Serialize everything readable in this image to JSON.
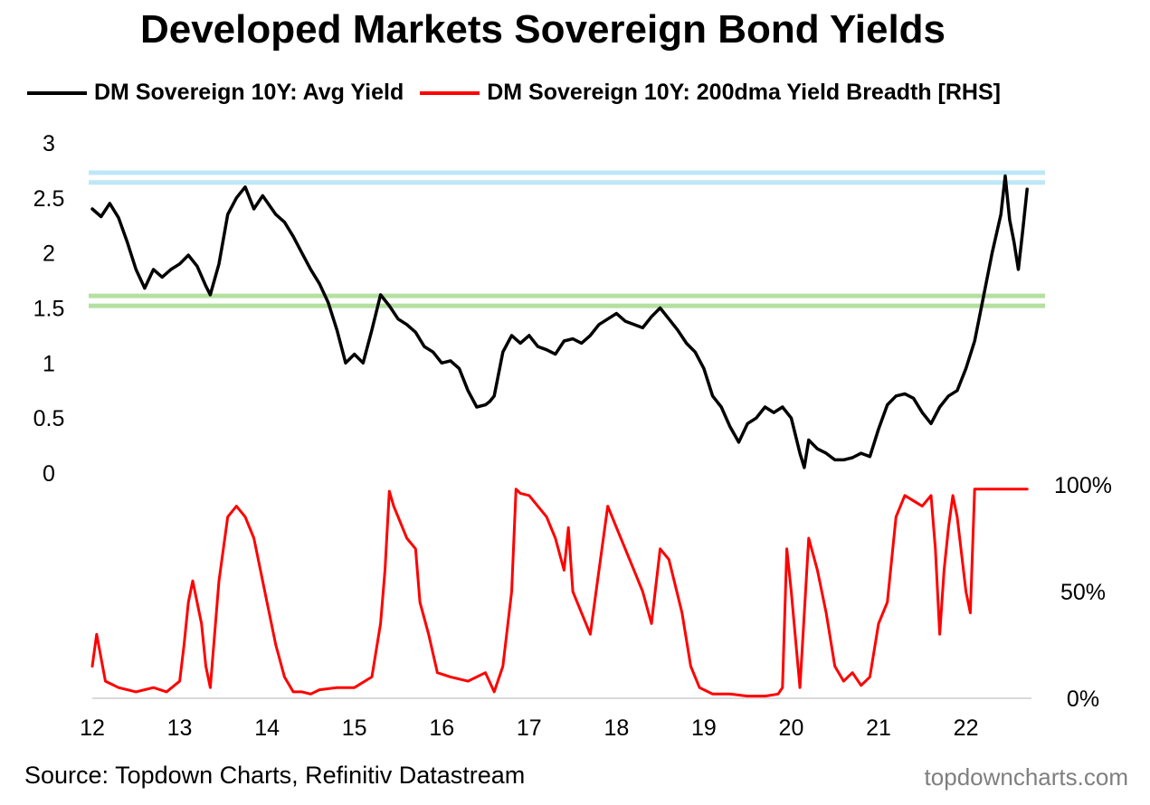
{
  "chart_data": {
    "title": "Developed Markets Sovereign Bond Yields",
    "type": "line",
    "legend_position": "top",
    "grid": false,
    "source": "Source: Topdown Charts, Refinitiv Datastream",
    "watermark": "topdowncharts.com",
    "x_ticks": [
      "12",
      "13",
      "14",
      "15",
      "16",
      "17",
      "18",
      "19",
      "20",
      "21",
      "22"
    ],
    "x_range": [
      2012.0,
      2022.75
    ],
    "left_axis": {
      "ticks": [
        "0",
        "0.5",
        "1",
        "1.5",
        "2",
        "2.5",
        "3"
      ],
      "range": [
        0,
        3
      ]
    },
    "right_axis": {
      "ticks": [
        "0%",
        "50%",
        "100%"
      ],
      "range": [
        0,
        100
      ]
    },
    "reference_bands": [
      {
        "color": "#bde7f7",
        "y": [
          2.64,
          2.73
        ]
      },
      {
        "color": "#b4e0a0",
        "y": [
          1.52,
          1.61
        ]
      }
    ],
    "series": [
      {
        "name": "DM Sovereign 10Y: Avg Yield",
        "color": "#000000",
        "axis": "left",
        "x": [
          2012.0,
          2012.1,
          2012.2,
          2012.3,
          2012.4,
          2012.5,
          2012.6,
          2012.7,
          2012.8,
          2012.9,
          2013.0,
          2013.1,
          2013.2,
          2013.3,
          2013.35,
          2013.45,
          2013.55,
          2013.65,
          2013.75,
          2013.85,
          2013.95,
          2014.1,
          2014.2,
          2014.3,
          2014.4,
          2014.5,
          2014.6,
          2014.7,
          2014.8,
          2014.9,
          2015.0,
          2015.1,
          2015.2,
          2015.3,
          2015.4,
          2015.5,
          2015.6,
          2015.7,
          2015.8,
          2015.9,
          2016.0,
          2016.1,
          2016.2,
          2016.3,
          2016.4,
          2016.5,
          2016.55,
          2016.6,
          2016.7,
          2016.8,
          2016.9,
          2017.0,
          2017.1,
          2017.2,
          2017.3,
          2017.4,
          2017.5,
          2017.6,
          2017.7,
          2017.8,
          2017.9,
          2018.0,
          2018.1,
          2018.2,
          2018.3,
          2018.4,
          2018.5,
          2018.6,
          2018.7,
          2018.8,
          2018.9,
          2019.0,
          2019.1,
          2019.2,
          2019.3,
          2019.4,
          2019.5,
          2019.6,
          2019.7,
          2019.8,
          2019.9,
          2020.0,
          2020.1,
          2020.15,
          2020.2,
          2020.3,
          2020.4,
          2020.5,
          2020.6,
          2020.7,
          2020.8,
          2020.9,
          2021.0,
          2021.1,
          2021.2,
          2021.3,
          2021.4,
          2021.5,
          2021.6,
          2021.7,
          2021.8,
          2021.9,
          2022.0,
          2022.1,
          2022.2,
          2022.3,
          2022.4,
          2022.45,
          2022.5,
          2022.55,
          2022.6,
          2022.65,
          2022.7
        ],
        "values": [
          2.4,
          2.33,
          2.45,
          2.32,
          2.1,
          1.85,
          1.68,
          1.85,
          1.78,
          1.85,
          1.9,
          1.98,
          1.88,
          1.7,
          1.62,
          1.9,
          2.35,
          2.5,
          2.6,
          2.4,
          2.52,
          2.35,
          2.28,
          2.15,
          2.0,
          1.85,
          1.72,
          1.55,
          1.3,
          1.0,
          1.08,
          1.0,
          1.3,
          1.62,
          1.52,
          1.4,
          1.35,
          1.28,
          1.15,
          1.1,
          1.0,
          1.02,
          0.95,
          0.75,
          0.6,
          0.62,
          0.65,
          0.7,
          1.1,
          1.25,
          1.18,
          1.25,
          1.15,
          1.12,
          1.08,
          1.2,
          1.22,
          1.18,
          1.25,
          1.35,
          1.4,
          1.45,
          1.38,
          1.35,
          1.32,
          1.42,
          1.5,
          1.4,
          1.3,
          1.18,
          1.1,
          0.95,
          0.7,
          0.6,
          0.42,
          0.28,
          0.45,
          0.5,
          0.6,
          0.55,
          0.6,
          0.5,
          0.18,
          0.05,
          0.3,
          0.22,
          0.18,
          0.12,
          0.12,
          0.14,
          0.18,
          0.15,
          0.4,
          0.62,
          0.7,
          0.72,
          0.68,
          0.55,
          0.45,
          0.6,
          0.7,
          0.75,
          0.95,
          1.2,
          1.6,
          2.0,
          2.35,
          2.7,
          2.3,
          2.1,
          1.85,
          2.2,
          2.58
        ]
      },
      {
        "name": "DM Sovereign 10Y: 200dma Yield Breadth [RHS]",
        "color": "#ff0000",
        "axis": "right",
        "x": [
          2012.0,
          2012.05,
          2012.15,
          2012.3,
          2012.5,
          2012.7,
          2012.85,
          2013.0,
          2013.05,
          2013.1,
          2013.15,
          2013.25,
          2013.3,
          2013.35,
          2013.45,
          2013.55,
          2013.65,
          2013.75,
          2013.85,
          2014.0,
          2014.1,
          2014.2,
          2014.3,
          2014.4,
          2014.5,
          2014.6,
          2014.8,
          2015.0,
          2015.2,
          2015.3,
          2015.35,
          2015.4,
          2015.45,
          2015.5,
          2015.6,
          2015.7,
          2015.75,
          2015.85,
          2015.95,
          2016.1,
          2016.3,
          2016.5,
          2016.6,
          2016.7,
          2016.8,
          2016.85,
          2016.9,
          2017.0,
          2017.1,
          2017.2,
          2017.3,
          2017.4,
          2017.45,
          2017.5,
          2017.6,
          2017.7,
          2017.8,
          2017.9,
          2018.0,
          2018.1,
          2018.2,
          2018.3,
          2018.4,
          2018.5,
          2018.6,
          2018.75,
          2018.85,
          2018.95,
          2019.1,
          2019.3,
          2019.5,
          2019.7,
          2019.85,
          2019.9,
          2019.95,
          2020.0,
          2020.1,
          2020.2,
          2020.3,
          2020.4,
          2020.5,
          2020.6,
          2020.7,
          2020.8,
          2020.9,
          2021.0,
          2021.1,
          2021.2,
          2021.3,
          2021.5,
          2021.6,
          2021.65,
          2021.7,
          2021.75,
          2021.8,
          2021.85,
          2021.9,
          2022.0,
          2022.05,
          2022.1,
          2022.3,
          2022.5,
          2022.6,
          2022.7
        ],
        "values": [
          15,
          30,
          8,
          5,
          3,
          5,
          3,
          8,
          25,
          45,
          55,
          35,
          15,
          5,
          55,
          85,
          90,
          85,
          75,
          45,
          25,
          10,
          3,
          3,
          2,
          4,
          5,
          5,
          10,
          35,
          60,
          97,
          90,
          85,
          75,
          70,
          45,
          30,
          12,
          10,
          8,
          12,
          3,
          15,
          50,
          98,
          96,
          95,
          90,
          85,
          75,
          60,
          80,
          50,
          40,
          30,
          60,
          90,
          80,
          70,
          60,
          50,
          35,
          70,
          65,
          40,
          15,
          5,
          2,
          2,
          1,
          1,
          2,
          5,
          70,
          50,
          5,
          75,
          60,
          40,
          15,
          8,
          12,
          6,
          10,
          35,
          45,
          85,
          95,
          90,
          95,
          70,
          30,
          60,
          80,
          95,
          85,
          50,
          40,
          98,
          98,
          98,
          98,
          98
        ]
      }
    ]
  }
}
